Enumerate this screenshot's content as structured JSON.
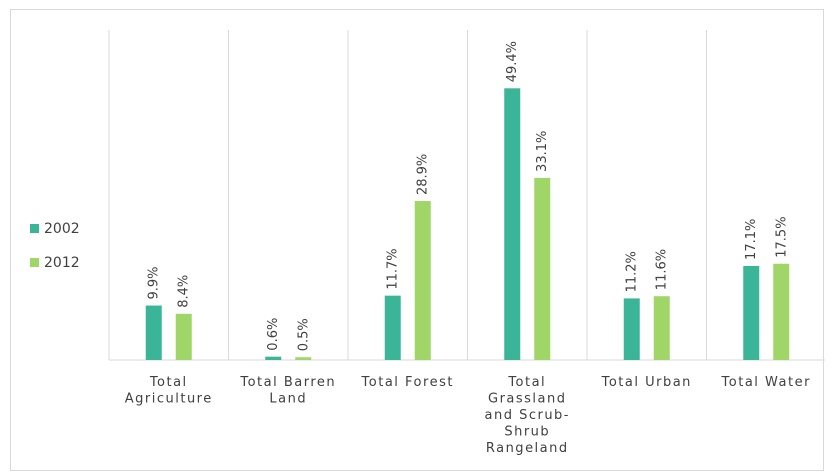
{
  "chart_data": {
    "type": "bar",
    "categories": [
      [
        "Total",
        "Agriculture"
      ],
      [
        "Total Barren",
        "Land"
      ],
      [
        "Total Forest"
      ],
      [
        "Total",
        "Grassland",
        "and Scrub-",
        "Shrub",
        "Rangeland"
      ],
      [
        "Total Urban"
      ],
      [
        "Total Water"
      ]
    ],
    "series": [
      {
        "name": "2002",
        "color": "#3bb597",
        "values": [
          9.9,
          0.6,
          11.7,
          49.4,
          11.2,
          17.1
        ],
        "labels": [
          "9.9%",
          "0.6%",
          "11.7%",
          "49.4%",
          "11.2%",
          "17.1%"
        ]
      },
      {
        "name": "2012",
        "color": "#9fd667",
        "values": [
          8.4,
          0.5,
          28.9,
          33.1,
          11.6,
          17.5
        ],
        "labels": [
          "8.4%",
          "0.5%",
          "28.9%",
          "33.1%",
          "11.6%",
          "17.5%"
        ]
      }
    ],
    "ylim": [
      0,
      55
    ],
    "vertical_grid": true,
    "legend_position": "left",
    "title": "",
    "xlabel": "",
    "ylabel": ""
  }
}
